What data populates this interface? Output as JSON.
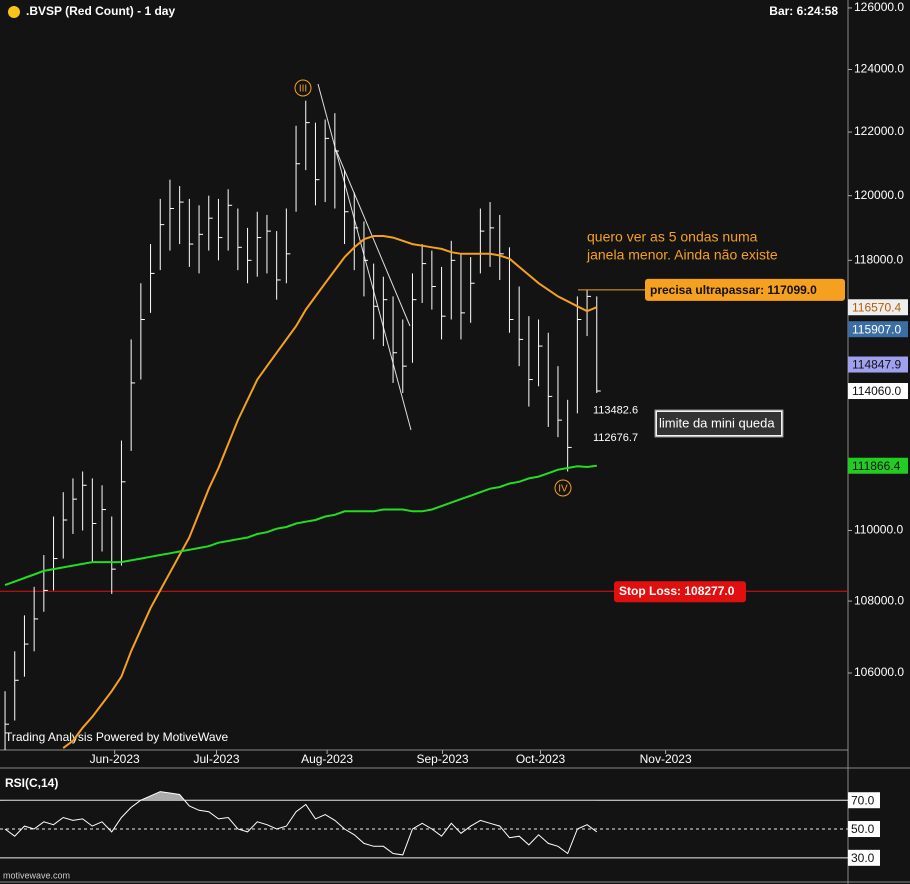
{
  "chart_data": {
    "type": "ohlc",
    "title": ".BVSP (Red Count) - 1 day",
    "bar_time": "Bar: 6:24:58",
    "watermark": "Trading Analysis Powered by MotiveWave",
    "site": "motivewave.com",
    "log_scale": true,
    "xlim": [
      -0.52,
      86.9
    ],
    "xticks": [
      {
        "value": 11.3,
        "label": "Jun-2023"
      },
      {
        "value": 21.8,
        "label": "Jul-2023"
      },
      {
        "value": 33.2,
        "label": "Aug-2023"
      },
      {
        "value": 45.1,
        "label": "Sep-2023"
      },
      {
        "value": 55.2,
        "label": "Oct-2023"
      },
      {
        "value": 68.1,
        "label": "Nov-2023"
      }
    ],
    "ylim": [
      103900,
      126260
    ],
    "yticks": [
      {
        "value": 126000,
        "label": "126000.0"
      },
      {
        "value": 124000,
        "label": "124000.0"
      },
      {
        "value": 122000,
        "label": "122000.0"
      },
      {
        "value": 120000,
        "label": "120000.0"
      },
      {
        "value": 118000,
        "label": "118000.0"
      },
      {
        "value": 110000,
        "label": "110000.0"
      },
      {
        "value": 108000,
        "label": "108000.0"
      },
      {
        "value": 106000,
        "label": "106000.0"
      }
    ],
    "bars_color": "#ffffff",
    "high": [
      105500,
      106600,
      107600,
      108400,
      109300,
      110400,
      111100,
      111500,
      111700,
      111500,
      111300,
      110400,
      112600,
      115600,
      117300,
      118500,
      119900,
      120500,
      120300,
      119900,
      119700,
      120000,
      119900,
      120200,
      119600,
      119000,
      119500,
      119400,
      118900,
      119600,
      122200,
      123000,
      122300,
      122400,
      122600,
      120800,
      120100,
      119200,
      117900,
      117500,
      116900,
      116200,
      117600,
      118500,
      118300,
      117800,
      118600,
      118200,
      118100,
      119600,
      119800,
      119400,
      118400,
      117200,
      116300,
      116200,
      115800,
      114800,
      113800,
      116900,
      117100,
      116900
    ],
    "low": [
      103900,
      104700,
      105900,
      106600,
      107700,
      108300,
      109200,
      109900,
      110000,
      109100,
      109400,
      108200,
      109000,
      112300,
      114400,
      116400,
      117700,
      118300,
      118500,
      117800,
      117600,
      118300,
      118000,
      118300,
      117700,
      117300,
      117500,
      117600,
      116800,
      117300,
      119500,
      120800,
      119700,
      119800,
      119600,
      118500,
      117700,
      116900,
      115600,
      115400,
      114300,
      114000,
      114900,
      116700,
      116500,
      115600,
      116200,
      115600,
      116100,
      117600,
      117800,
      117400,
      115800,
      114800,
      113600,
      114200,
      113000,
      112700,
      111700,
      113400,
      115700,
      114000
    ],
    "close": [
      104600,
      105800,
      106800,
      107500,
      108300,
      109200,
      110300,
      110900,
      111300,
      110200,
      110600,
      108900,
      111400,
      114300,
      116200,
      117600,
      119100,
      119600,
      119800,
      118500,
      118800,
      119300,
      118700,
      119700,
      118400,
      118000,
      118700,
      118900,
      117400,
      118200,
      121000,
      122300,
      120500,
      121800,
      121400,
      119500,
      119000,
      118000,
      116600,
      116800,
      115200,
      114800,
      116800,
      117900,
      117200,
      116300,
      118000,
      116400,
      117300,
      118900,
      119000,
      118200,
      116200,
      115600,
      114400,
      115400,
      113900,
      113200,
      112400,
      116200,
      116900,
      114060
    ],
    "series": [
      {
        "color": "#f5a01e",
        "values": [
          null,
          null,
          null,
          null,
          null,
          null,
          103950,
          104150,
          104500,
          104800,
          105150,
          105500,
          105900,
          106600,
          107200,
          107800,
          108300,
          108800,
          109300,
          109800,
          110500,
          111200,
          111800,
          112500,
          113200,
          113800,
          114400,
          114800,
          115200,
          115600,
          116000,
          116500,
          116900,
          117300,
          117700,
          118100,
          118400,
          118650,
          118750,
          118750,
          118700,
          118600,
          118500,
          118450,
          118400,
          118350,
          118250,
          118200,
          118200,
          118200,
          118200,
          118150,
          118050,
          117800,
          117550,
          117300,
          117100,
          116900,
          116750,
          116600,
          116450,
          116570.4
        ]
      },
      {
        "color": "#22dd22",
        "values": [
          108450,
          108550,
          108650,
          108750,
          108850,
          108900,
          108950,
          109000,
          109050,
          109100,
          109100,
          109100,
          109100,
          109150,
          109200,
          109250,
          109300,
          109350,
          109400,
          109450,
          109500,
          109550,
          109650,
          109700,
          109750,
          109800,
          109900,
          109950,
          110050,
          110100,
          110200,
          110250,
          110300,
          110400,
          110450,
          110550,
          110550,
          110550,
          110550,
          110600,
          110600,
          110600,
          110550,
          110550,
          110600,
          110700,
          110800,
          110900,
          111000,
          111100,
          111200,
          111250,
          111350,
          111400,
          111500,
          111550,
          111650,
          111750,
          111800,
          111850,
          111830,
          111866.4
        ]
      }
    ],
    "price_markers": [
      {
        "value": 116570.4,
        "label": "116570.4",
        "color": "#eeeeee",
        "text_color": "#b65c00"
      },
      {
        "value": 115907.0,
        "label": "115907.0",
        "color": "#3a6ea5",
        "text_color": "#ffffff"
      },
      {
        "value": 114847.9,
        "label": "114847.9",
        "color": "#a0a0f0",
        "text_color": "#111111"
      },
      {
        "value": 114060.0,
        "label": "114060.0",
        "color": "#ffffff",
        "text_color": "#111111"
      },
      {
        "value": 111866.4,
        "label": "111866.4",
        "color": "#22cc22",
        "text_color": "#111111"
      }
    ],
    "target": {
      "text": "precisa ultrapassar:",
      "value": 117099.0,
      "value_label": "117099.0",
      "color": "#f5a01e"
    },
    "stop_loss": {
      "text": "Stop Loss:",
      "value": 108277.0,
      "value_label": "108277.0",
      "color": "#e01010"
    },
    "levels": [
      {
        "value": 113482.6,
        "label": "113482.6"
      },
      {
        "value": 112676.7,
        "label": "112676.7"
      }
    ],
    "level_note": "limite da mini queda",
    "note_lines": [
      "quero ver as 5 ondas numa",
      "janela menor. Ainda não existe"
    ],
    "waves": [
      "III",
      "IV"
    ],
    "rsi": {
      "title": "RSI(C,14)",
      "ylim": [
        14.6,
        89.6
      ],
      "yticks": [
        {
          "value": 70,
          "label": "70.0"
        },
        {
          "value": 50,
          "label": "50.0"
        },
        {
          "value": 30,
          "label": "30.0"
        }
      ],
      "values": [
        50,
        45,
        52,
        50,
        55,
        53,
        58,
        56,
        57,
        52,
        55,
        48,
        58,
        65,
        70,
        73,
        76,
        75,
        74,
        66,
        63,
        62,
        57,
        58,
        50,
        48,
        55,
        53,
        50,
        52,
        62,
        67,
        57,
        60,
        56,
        50,
        46,
        40,
        38,
        38,
        33,
        32,
        50,
        54,
        50,
        45,
        54,
        47,
        52,
        56,
        54,
        52,
        44,
        45,
        39,
        46,
        40,
        38,
        33,
        50,
        53,
        48
      ]
    }
  }
}
